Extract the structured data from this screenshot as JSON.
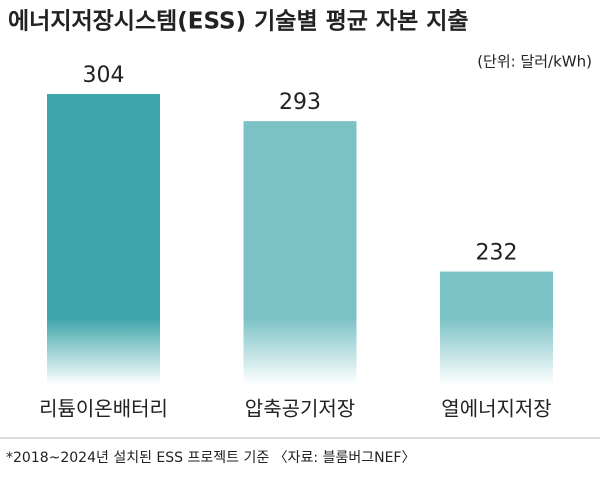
{
  "chart_data": {
    "type": "bar",
    "title": "에너지저장시스템(ESS) 기술별 평균 자본 지출",
    "subtitle": "(단위: 달러/kWh)",
    "categories": [
      "리튬이온배터리",
      "압축공기저장",
      "열에너지저장"
    ],
    "values": [
      304,
      293,
      232
    ],
    "colors": [
      "#3ea5aa",
      "#7bc2c6",
      "#7bc2c6"
    ],
    "ylim": [
      186,
      304
    ],
    "note": "*2018~2024년 설치된 ESS 프로젝트 기준 〈자료: 블룸버그NEF〉"
  }
}
